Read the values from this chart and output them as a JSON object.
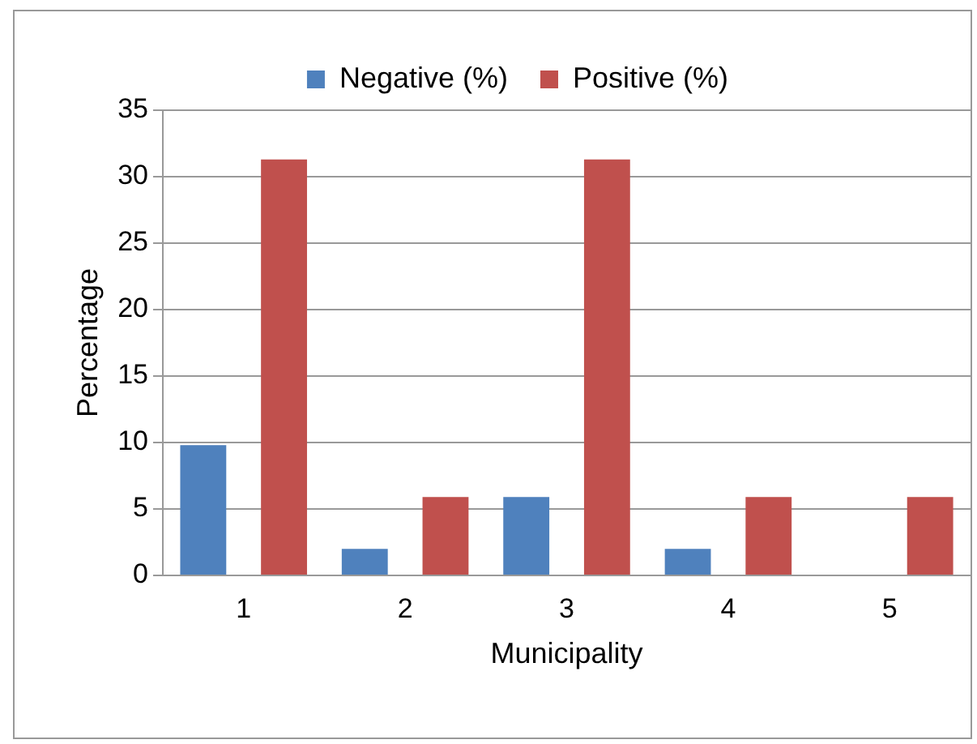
{
  "chart_data": {
    "type": "bar",
    "xlabel": "Municipality",
    "ylabel": "Percentage",
    "categories": [
      "1",
      "2",
      "3",
      "4",
      "5"
    ],
    "series": [
      {
        "name": "Negative (%)",
        "color": "#4f81bd",
        "values": [
          9.8,
          2.0,
          5.9,
          2.0,
          0
        ]
      },
      {
        "name": "Positive (%)",
        "color": "#c0504d",
        "values": [
          31.3,
          5.9,
          31.3,
          5.9,
          5.9
        ]
      }
    ],
    "ylim": [
      0,
      35
    ],
    "yticks": [
      0,
      5,
      10,
      15,
      20,
      25,
      30,
      35
    ],
    "grid": "y",
    "legend": "top"
  }
}
